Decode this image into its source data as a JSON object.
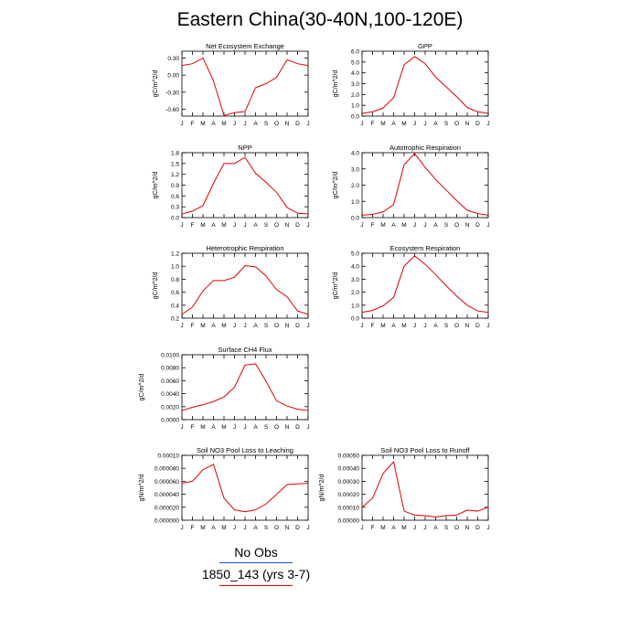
{
  "title": "Eastern China(30-40N,100-120E)",
  "legend": {
    "obs_label": "No Obs",
    "model_label": "1850_143 (yrs 3-7)",
    "obs_color": "#1f4fd1",
    "model_color": "#e00000"
  },
  "chart_data": [
    {
      "type": "line",
      "title": "Net Ecosystem Exchange",
      "ylabel": "gC/m^2/d",
      "categories": [
        "J",
        "F",
        "M",
        "A",
        "M",
        "J",
        "J",
        "A",
        "S",
        "O",
        "N",
        "D",
        "J"
      ],
      "yticks": [
        "0.30",
        "0.00",
        "-0.30",
        "-0.60"
      ],
      "ytick_values": [
        0.3,
        0,
        -0.3,
        -0.6
      ],
      "ylim": [
        -0.72,
        0.42
      ],
      "series": [
        {
          "values": [
            0.17,
            0.2,
            0.3,
            -0.1,
            -0.71,
            -0.66,
            -0.64,
            -0.22,
            -0.15,
            -0.04,
            0.27,
            0.2,
            0.17
          ]
        }
      ]
    },
    {
      "type": "line",
      "title": "GPP",
      "ylabel": "gC/m^2/d",
      "categories": [
        "J",
        "F",
        "M",
        "A",
        "M",
        "J",
        "J",
        "A",
        "S",
        "O",
        "N",
        "D",
        "J"
      ],
      "yticks": [
        "6.0",
        "5.0",
        "4.0",
        "3.0",
        "2.0",
        "1.0",
        "0.0"
      ],
      "ytick_values": [
        6,
        5,
        4,
        3,
        2,
        1,
        0
      ],
      "ylim": [
        0,
        6
      ],
      "series": [
        {
          "values": [
            0.25,
            0.4,
            0.75,
            1.7,
            4.75,
            5.5,
            4.85,
            3.6,
            2.7,
            1.8,
            0.8,
            0.4,
            0.25
          ]
        }
      ]
    },
    {
      "type": "line",
      "title": "NPP",
      "ylabel": "gC/m^2/d",
      "categories": [
        "J",
        "F",
        "M",
        "A",
        "M",
        "J",
        "J",
        "A",
        "S",
        "O",
        "N",
        "D",
        "J"
      ],
      "yticks": [
        "1.8",
        "1.5",
        "1.2",
        "0.9",
        "0.6",
        "0.3",
        "0.0"
      ],
      "ytick_values": [
        1.8,
        1.5,
        1.2,
        0.9,
        0.6,
        0.3,
        0
      ],
      "ylim": [
        0,
        1.8
      ],
      "series": [
        {
          "values": [
            0.1,
            0.18,
            0.33,
            0.95,
            1.5,
            1.5,
            1.67,
            1.23,
            0.98,
            0.7,
            0.28,
            0.12,
            0.1
          ]
        }
      ]
    },
    {
      "type": "line",
      "title": "Autotrophic Respiration",
      "ylabel": "gC/m^2/d",
      "categories": [
        "J",
        "F",
        "M",
        "A",
        "M",
        "J",
        "J",
        "A",
        "S",
        "O",
        "N",
        "D",
        "J"
      ],
      "yticks": [
        "4.0",
        "3.0",
        "2.0",
        "1.0",
        "0.0"
      ],
      "ytick_values": [
        4,
        3,
        2,
        1,
        0
      ],
      "ylim": [
        0,
        4
      ],
      "series": [
        {
          "values": [
            0.15,
            0.2,
            0.35,
            0.8,
            3.25,
            3.95,
            3.1,
            2.35,
            1.7,
            1.05,
            0.45,
            0.25,
            0.15
          ]
        }
      ]
    },
    {
      "type": "line",
      "title": "Heterotrophic Respiration",
      "ylabel": "gC/m^2/d",
      "categories": [
        "J",
        "F",
        "M",
        "A",
        "M",
        "J",
        "J",
        "A",
        "S",
        "O",
        "N",
        "D",
        "J"
      ],
      "yticks": [
        "1.2",
        "1.0",
        "0.8",
        "0.6",
        "0.4",
        "0.2"
      ],
      "ytick_values": [
        1.2,
        1.0,
        0.8,
        0.6,
        0.4,
        0.2
      ],
      "ylim": [
        0.2,
        1.2
      ],
      "series": [
        {
          "values": [
            0.26,
            0.37,
            0.62,
            0.78,
            0.78,
            0.83,
            1.01,
            0.99,
            0.85,
            0.64,
            0.53,
            0.31,
            0.26
          ]
        }
      ]
    },
    {
      "type": "line",
      "title": "Ecosystem Respiration",
      "ylabel": "gC/m^2/d",
      "categories": [
        "J",
        "F",
        "M",
        "A",
        "M",
        "J",
        "J",
        "A",
        "S",
        "O",
        "N",
        "D",
        "J"
      ],
      "yticks": [
        "5.0",
        "4.0",
        "3.0",
        "2.0",
        "1.0",
        "0.0"
      ],
      "ytick_values": [
        5,
        4,
        3,
        2,
        1,
        0
      ],
      "ylim": [
        0,
        5
      ],
      "series": [
        {
          "values": [
            0.45,
            0.6,
            0.95,
            1.6,
            4.0,
            4.8,
            4.15,
            3.35,
            2.5,
            1.7,
            1.0,
            0.55,
            0.45
          ]
        }
      ]
    },
    {
      "type": "line",
      "title": "Surface CH4 Flux",
      "ylabel": "gC/m^2/d",
      "categories": [
        "J",
        "F",
        "M",
        "A",
        "M",
        "J",
        "J",
        "A",
        "S",
        "O",
        "N",
        "D",
        "J"
      ],
      "yticks": [
        "0.0100",
        "0.0080",
        "0.0060",
        "0.0040",
        "0.0020",
        "0.0000"
      ],
      "ytick_values": [
        0.01,
        0.008,
        0.006,
        0.004,
        0.002,
        0
      ],
      "ylim": [
        0,
        0.01
      ],
      "series": [
        {
          "values": [
            0.0014,
            0.0019,
            0.0023,
            0.0028,
            0.0035,
            0.005,
            0.0084,
            0.0086,
            0.0059,
            0.0029,
            0.0021,
            0.0016,
            0.0014
          ]
        }
      ]
    },
    {
      "type": "line",
      "title": "Soil NO3 Pool Loss to Leaching",
      "ylabel": "gN/m^2/d",
      "categories": [
        "J",
        "F",
        "M",
        "A",
        "M",
        "J",
        "J",
        "A",
        "S",
        "O",
        "N",
        "D",
        "J"
      ],
      "yticks": [
        "0.00010",
        "0.000080",
        "0.000060",
        "0.000040",
        "0.000020",
        "0.000000"
      ],
      "ytick_values": [
        0.0001,
        8e-05,
        6e-05,
        4e-05,
        2e-05,
        0
      ],
      "ylim": [
        0,
        0.0001
      ],
      "series": [
        {
          "values": [
            5.7e-05,
            6e-05,
            7.8e-05,
            8.6e-05,
            3.4e-05,
            1.6e-05,
            1.3e-05,
            1.6e-05,
            2.5e-05,
            4e-05,
            5.5e-05,
            5.6e-05,
            5.7e-05
          ]
        }
      ]
    },
    {
      "type": "line",
      "title": "Soil NO3 Pool Loss to Runoff",
      "ylabel": "gN/m^2/d",
      "categories": [
        "J",
        "F",
        "M",
        "A",
        "M",
        "J",
        "J",
        "A",
        "S",
        "O",
        "N",
        "D",
        "J"
      ],
      "yticks": [
        "0.00050",
        "0.00040",
        "0.00030",
        "0.00020",
        "0.00010",
        "0.00000"
      ],
      "ytick_values": [
        0.0005,
        0.0004,
        0.0003,
        0.0002,
        0.0001,
        0
      ],
      "ylim": [
        0,
        0.0005
      ],
      "series": [
        {
          "values": [
            0.0001,
            0.00017,
            0.00036,
            0.00045,
            7e-05,
            4e-05,
            3.5e-05,
            2.5e-05,
            3.5e-05,
            4e-05,
            7.8e-05,
            7e-05,
            0.0001
          ]
        }
      ]
    }
  ]
}
